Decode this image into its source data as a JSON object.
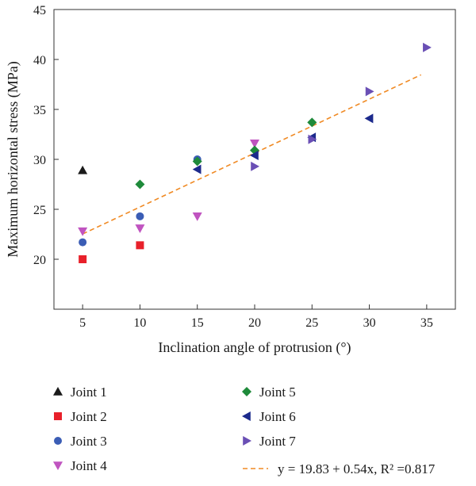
{
  "chart_data": {
    "type": "scatter",
    "xlabel": "Inclination angle of protrusion (°)",
    "ylabel": "Maximum horizontal stress (MPa)",
    "xlim": [
      2.5,
      37.5
    ],
    "ylim": [
      15,
      45
    ],
    "xticks": [
      "5",
      "10",
      "15",
      "20",
      "25",
      "30",
      "35"
    ],
    "yticks": [
      "20",
      "25",
      "30",
      "35",
      "40",
      "45"
    ],
    "grid": false,
    "series": [
      {
        "name": "Joint 1",
        "marker": "triangle-up",
        "color": "#1a1a1a",
        "points": [
          [
            5,
            28.9
          ]
        ]
      },
      {
        "name": "Joint 2",
        "marker": "square",
        "color": "#e8202a",
        "points": [
          [
            5,
            20.0
          ],
          [
            10,
            21.4
          ]
        ]
      },
      {
        "name": "Joint 3",
        "marker": "circle",
        "color": "#3b5db5",
        "points": [
          [
            5,
            21.7
          ],
          [
            10,
            24.3
          ],
          [
            15,
            30.0
          ]
        ]
      },
      {
        "name": "Joint 4",
        "marker": "triangle-down",
        "color": "#c054c0",
        "points": [
          [
            5,
            22.8
          ],
          [
            10,
            23.1
          ],
          [
            15,
            24.3
          ],
          [
            20,
            31.6
          ]
        ]
      },
      {
        "name": "Joint 5",
        "marker": "diamond",
        "color": "#1e8a3a",
        "points": [
          [
            10,
            27.5
          ],
          [
            15,
            29.8
          ],
          [
            20,
            30.9
          ],
          [
            25,
            33.7
          ]
        ]
      },
      {
        "name": "Joint 6",
        "marker": "triangle-left",
        "color": "#1c2a8c",
        "points": [
          [
            15,
            29.0
          ],
          [
            20,
            30.4
          ],
          [
            25,
            32.2
          ],
          [
            30,
            34.1
          ]
        ]
      },
      {
        "name": "Joint 7",
        "marker": "triangle-right",
        "color": "#6a4fb5",
        "points": [
          [
            20,
            29.3
          ],
          [
            25,
            32.0
          ],
          [
            30,
            36.8
          ],
          [
            35,
            41.2
          ]
        ]
      }
    ],
    "fit": {
      "label": "y = 19.83 + 0.54x, R² =0.817",
      "intercept": 19.83,
      "slope": 0.54,
      "x_range": [
        5,
        34.5
      ],
      "color": "#f08a24",
      "style": "dashed"
    },
    "legend_placement": "below"
  }
}
